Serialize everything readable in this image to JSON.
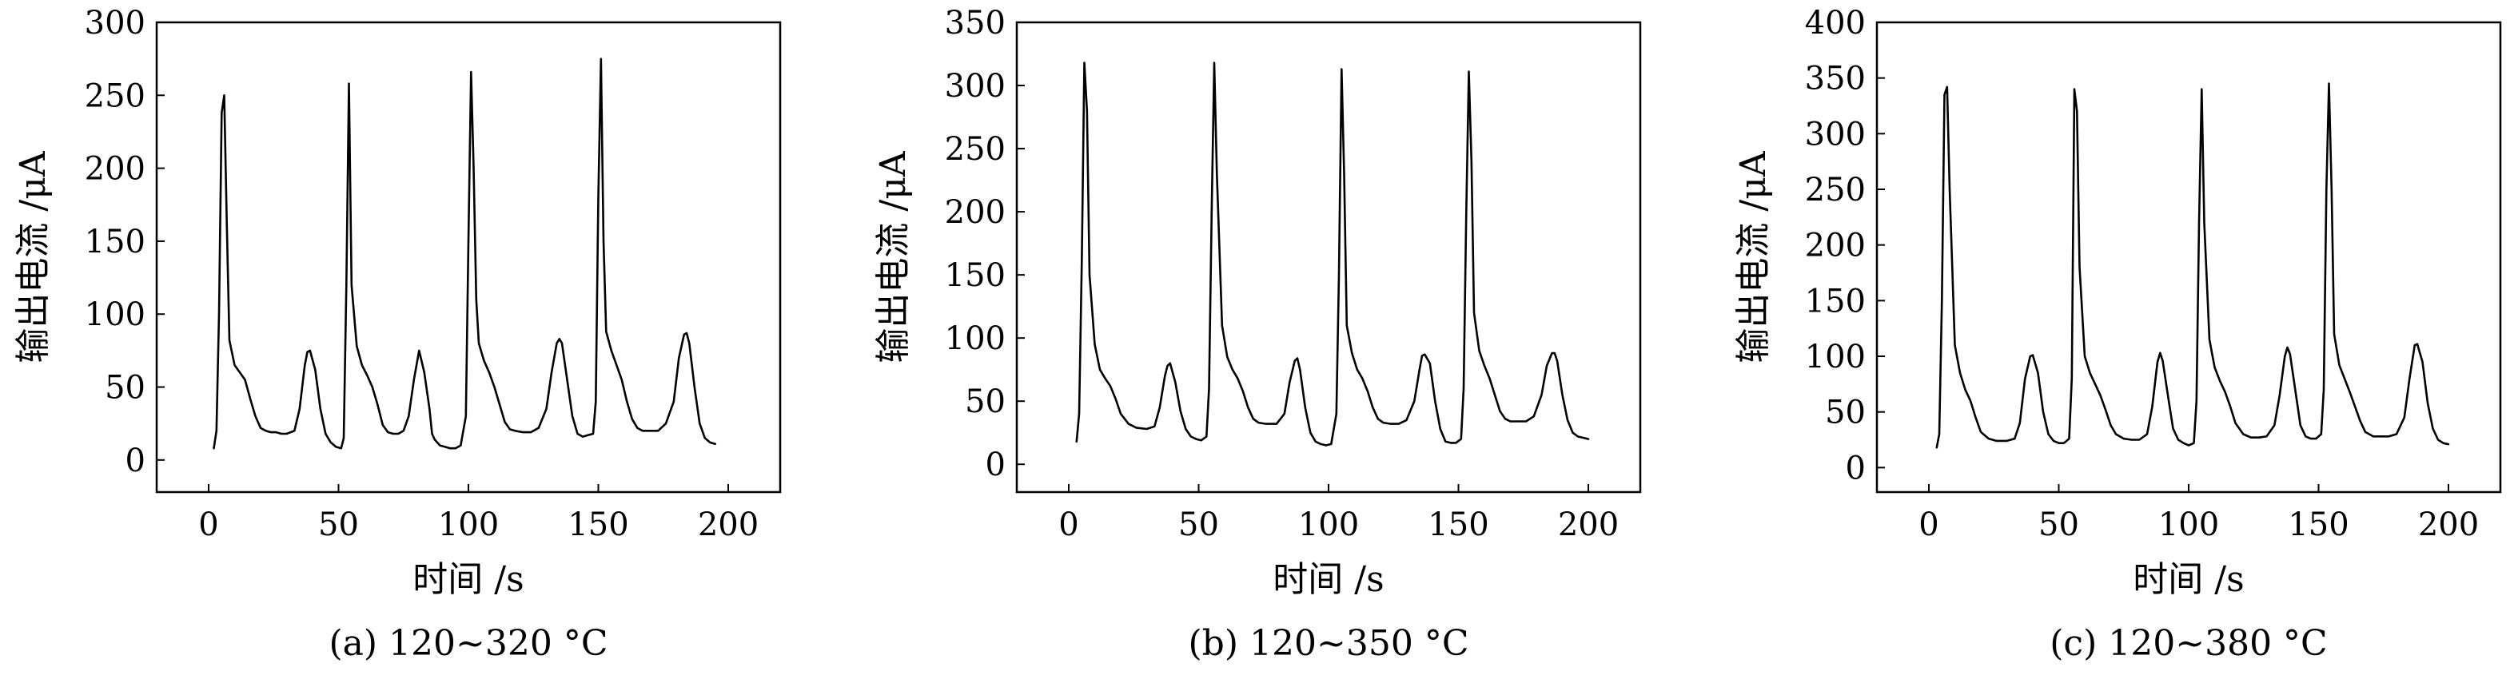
{
  "chart_data": [
    {
      "type": "line",
      "caption": "(a) 120~320 °C",
      "xlabel": "时间 /s",
      "ylabel": "输出电流 /μA",
      "xlim": [
        -20,
        220
      ],
      "ylim": [
        -22,
        300
      ],
      "xticks": [
        0,
        50,
        100,
        150,
        200
      ],
      "yticks": [
        0,
        50,
        100,
        150,
        200,
        250,
        300
      ],
      "grid": false,
      "series": [
        {
          "color": "#000000",
          "x": [
            2,
            3,
            4,
            5,
            6,
            7,
            8,
            10,
            12,
            14,
            16,
            18,
            20,
            22,
            24,
            26,
            28,
            30,
            33,
            35,
            37,
            38,
            39,
            41,
            43,
            45,
            47,
            49,
            51,
            52,
            53,
            54,
            55,
            57,
            59,
            61,
            63,
            65,
            67,
            69,
            71,
            73,
            75,
            77,
            79,
            81,
            83,
            85,
            86,
            87,
            89,
            91,
            93,
            95,
            97,
            99,
            100,
            101,
            102,
            103,
            104,
            106,
            108,
            110,
            112,
            114,
            116,
            118,
            121,
            124,
            127,
            130,
            132,
            134,
            135,
            136,
            138,
            140,
            142,
            144,
            146,
            148,
            149,
            150,
            151,
            152,
            153,
            155,
            157,
            159,
            161,
            163,
            165,
            167,
            170,
            173,
            176,
            179,
            181,
            183,
            184,
            185,
            187,
            189,
            191,
            193,
            195
          ],
          "y": [
            8,
            20,
            100,
            238,
            250,
            160,
            82,
            65,
            60,
            55,
            42,
            30,
            22,
            20,
            19,
            19,
            18,
            18,
            20,
            35,
            65,
            74,
            75,
            62,
            35,
            18,
            12,
            9,
            8,
            15,
            120,
            258,
            120,
            78,
            65,
            58,
            50,
            38,
            24,
            19,
            18,
            18,
            20,
            30,
            55,
            75,
            60,
            35,
            18,
            14,
            10,
            9,
            8,
            8,
            10,
            30,
            150,
            266,
            200,
            110,
            80,
            68,
            60,
            50,
            38,
            26,
            21,
            20,
            19,
            19,
            22,
            35,
            60,
            80,
            83,
            80,
            55,
            30,
            18,
            16,
            17,
            18,
            40,
            180,
            275,
            150,
            88,
            75,
            65,
            55,
            40,
            28,
            22,
            20,
            20,
            20,
            25,
            40,
            70,
            86,
            87,
            80,
            50,
            25,
            15,
            12,
            11
          ]
        }
      ]
    },
    {
      "type": "line",
      "caption": "(b) 120~350 °C",
      "xlabel": "时间 /s",
      "ylabel": "输出电流 /μA",
      "xlim": [
        -20,
        220
      ],
      "ylim": [
        -22,
        350
      ],
      "xticks": [
        0,
        50,
        100,
        150,
        200
      ],
      "yticks": [
        0,
        50,
        100,
        150,
        200,
        250,
        300,
        350
      ],
      "grid": false,
      "series": [
        {
          "color": "#000000",
          "x": [
            3,
            4,
            5,
            6,
            7,
            8,
            10,
            12,
            14,
            16,
            18,
            20,
            23,
            26,
            30,
            33,
            35,
            37,
            38,
            39,
            41,
            43,
            45,
            47,
            49,
            51,
            53,
            54,
            55,
            56,
            57,
            59,
            61,
            63,
            65,
            67,
            69,
            71,
            73,
            76,
            80,
            83,
            85,
            87,
            88,
            89,
            91,
            93,
            95,
            97,
            99,
            101,
            103,
            104,
            105,
            106,
            107,
            109,
            111,
            113,
            115,
            117,
            119,
            121,
            124,
            127,
            130,
            133,
            135,
            136,
            137,
            139,
            141,
            143,
            145,
            147,
            149,
            151,
            152,
            153,
            154,
            155,
            156,
            158,
            160,
            162,
            164,
            166,
            168,
            170,
            173,
            176,
            179,
            182,
            184,
            186,
            187,
            188,
            190,
            192,
            194,
            196,
            198,
            200
          ],
          "y": [
            18,
            40,
            160,
            318,
            280,
            150,
            95,
            75,
            68,
            62,
            52,
            40,
            32,
            29,
            28,
            30,
            45,
            70,
            78,
            80,
            65,
            42,
            28,
            22,
            20,
            19,
            22,
            60,
            200,
            318,
            230,
            110,
            85,
            75,
            68,
            58,
            45,
            36,
            33,
            32,
            32,
            40,
            65,
            82,
            84,
            75,
            45,
            25,
            18,
            16,
            15,
            16,
            40,
            150,
            313,
            230,
            110,
            88,
            75,
            68,
            58,
            45,
            36,
            33,
            32,
            32,
            35,
            50,
            75,
            86,
            87,
            80,
            50,
            28,
            18,
            17,
            17,
            20,
            60,
            200,
            311,
            240,
            120,
            90,
            78,
            68,
            55,
            42,
            36,
            34,
            34,
            34,
            38,
            55,
            78,
            88,
            88,
            82,
            55,
            35,
            25,
            22,
            21,
            20
          ]
        }
      ]
    },
    {
      "type": "line",
      "caption": "(c) 120~380 °C",
      "xlabel": "时间 /s",
      "ylabel": "输出电流 /μA",
      "xlim": [
        -20,
        220
      ],
      "ylim": [
        -22,
        400
      ],
      "xticks": [
        0,
        50,
        100,
        150,
        200
      ],
      "yticks": [
        0,
        50,
        100,
        150,
        200,
        250,
        300,
        350,
        400
      ],
      "grid": false,
      "series": [
        {
          "color": "#000000",
          "x": [
            3,
            4,
            5,
            6,
            7,
            8,
            10,
            12,
            14,
            16,
            18,
            20,
            23,
            26,
            30,
            33,
            35,
            37,
            39,
            40,
            42,
            44,
            46,
            48,
            50,
            52,
            54,
            55,
            56,
            57,
            58,
            60,
            62,
            64,
            66,
            68,
            70,
            72,
            75,
            78,
            81,
            84,
            86,
            88,
            89,
            90,
            92,
            94,
            96,
            98,
            100,
            102,
            103,
            104,
            105,
            106,
            108,
            110,
            112,
            114,
            116,
            118,
            121,
            124,
            127,
            130,
            133,
            135,
            137,
            138,
            139,
            141,
            143,
            145,
            147,
            149,
            151,
            152,
            153,
            154,
            155,
            156,
            158,
            160,
            162,
            164,
            166,
            168,
            171,
            174,
            177,
            180,
            183,
            185,
            187,
            188,
            190,
            192,
            194,
            196,
            198,
            200
          ],
          "y": [
            18,
            30,
            150,
            335,
            342,
            250,
            110,
            85,
            70,
            60,
            45,
            32,
            26,
            24,
            24,
            26,
            40,
            80,
            100,
            101,
            85,
            50,
            30,
            24,
            22,
            22,
            26,
            80,
            340,
            320,
            180,
            100,
            85,
            75,
            65,
            52,
            38,
            30,
            26,
            25,
            25,
            30,
            55,
            95,
            103,
            96,
            65,
            35,
            25,
            22,
            20,
            22,
            60,
            220,
            340,
            220,
            115,
            90,
            78,
            68,
            55,
            40,
            30,
            27,
            27,
            28,
            38,
            65,
            100,
            108,
            102,
            70,
            38,
            28,
            26,
            26,
            30,
            70,
            250,
            345,
            250,
            120,
            92,
            80,
            68,
            55,
            42,
            32,
            28,
            28,
            28,
            30,
            45,
            80,
            110,
            111,
            95,
            58,
            35,
            25,
            22,
            21
          ]
        }
      ]
    }
  ]
}
